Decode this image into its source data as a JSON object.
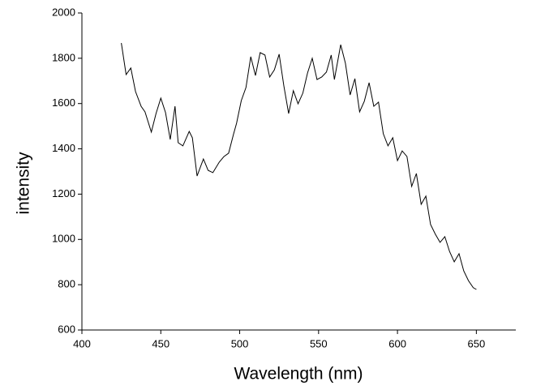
{
  "chart_data": {
    "type": "line",
    "x_label": "Wavelength (nm)",
    "y_label": "intensity",
    "xlim": [
      400,
      675
    ],
    "xticks": [
      400,
      450,
      500,
      550,
      600,
      650
    ],
    "ylim": [
      600,
      2000
    ],
    "yticks": [
      600,
      800,
      1000,
      1200,
      1400,
      1600,
      1800,
      2000
    ],
    "grid": false,
    "x": [
      425,
      428,
      431,
      434,
      437.5,
      440,
      444,
      447,
      450,
      453,
      456,
      459,
      461,
      464,
      468,
      470,
      473,
      477,
      480,
      483,
      487,
      490,
      493,
      496,
      498,
      501,
      504,
      507,
      510,
      513,
      516,
      519,
      522,
      525,
      528,
      531,
      534,
      537,
      540,
      543,
      546,
      549,
      552,
      555,
      558,
      560,
      564,
      567,
      570,
      573,
      576,
      579,
      582,
      585,
      588,
      591,
      594,
      597,
      600,
      603,
      606,
      609,
      612,
      615,
      618,
      621,
      624,
      627,
      630,
      633,
      636,
      639,
      642,
      645,
      648,
      650
    ],
    "series": [
      {
        "color": "#000000",
        "values": [
          1867,
          1728,
          1757,
          1653,
          1588,
          1563,
          1474,
          1556,
          1624,
          1560,
          1441,
          1588,
          1427,
          1413,
          1477,
          1449,
          1280,
          1355,
          1305,
          1295,
          1341,
          1366,
          1381,
          1463,
          1513,
          1613,
          1671,
          1807,
          1724,
          1825,
          1814,
          1717,
          1749,
          1818,
          1678,
          1556,
          1657,
          1599,
          1646,
          1735,
          1800,
          1706,
          1717,
          1739,
          1814,
          1706,
          1860,
          1778,
          1638,
          1710,
          1563,
          1610,
          1692,
          1588,
          1606,
          1467,
          1413,
          1449,
          1348,
          1391,
          1366,
          1234,
          1291,
          1155,
          1191,
          1066,
          1023,
          987,
          1012,
          947,
          901,
          937,
          861,
          818,
          787,
          779
        ]
      }
    ]
  }
}
